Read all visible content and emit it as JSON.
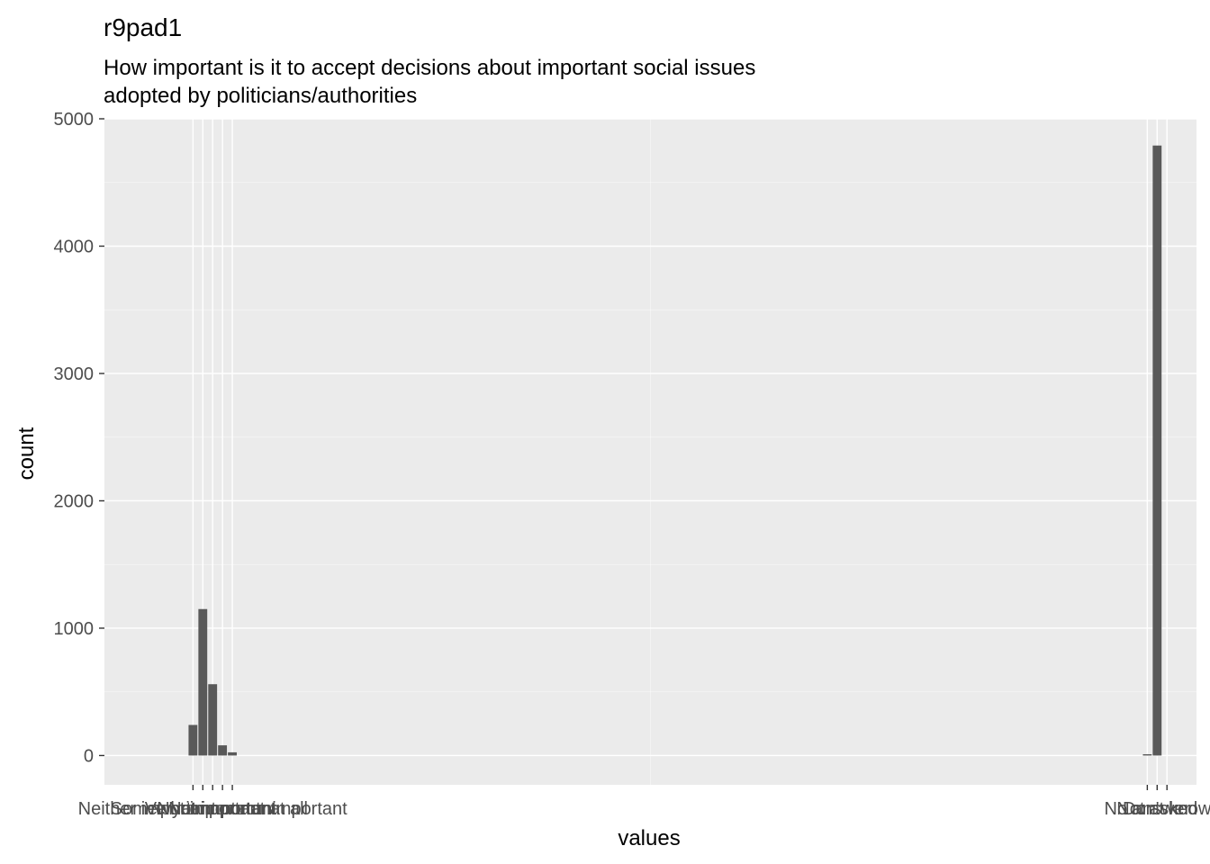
{
  "chart_data": {
    "type": "bar",
    "title": "r9pad1",
    "subtitle_lines": [
      "How important is it to accept decisions about important social issues",
      "adopted by politicians/authorities"
    ],
    "xlabel": "values",
    "ylabel": "count",
    "ylim": [
      -230,
      5000
    ],
    "y_ticks": [
      0,
      1000,
      2000,
      3000,
      4000,
      5000
    ],
    "x_range": [
      -8,
      103
    ],
    "x_gridlines": [
      47.5
    ],
    "categories": [
      {
        "label": "Somewhat important",
        "x": 1,
        "value": 240
      },
      {
        "label": "Very important",
        "x": 2,
        "value": 1150
      },
      {
        "label": "Neither important nor unimportant",
        "x": 3,
        "value": 560
      },
      {
        "label": "Not important",
        "x": 4,
        "value": 80
      },
      {
        "label": "Not important at all",
        "x": 5,
        "value": 25
      },
      {
        "label": "No answer",
        "x": 98,
        "value": 10
      },
      {
        "label": "Not asked",
        "x": 99,
        "value": 4790
      },
      {
        "label": "Don't know",
        "x": 100,
        "value": 0
      }
    ]
  },
  "colors": {
    "panel": "#ebebeb",
    "grid_major": "#ffffff",
    "bar": "#595959",
    "tick": "#333333"
  }
}
